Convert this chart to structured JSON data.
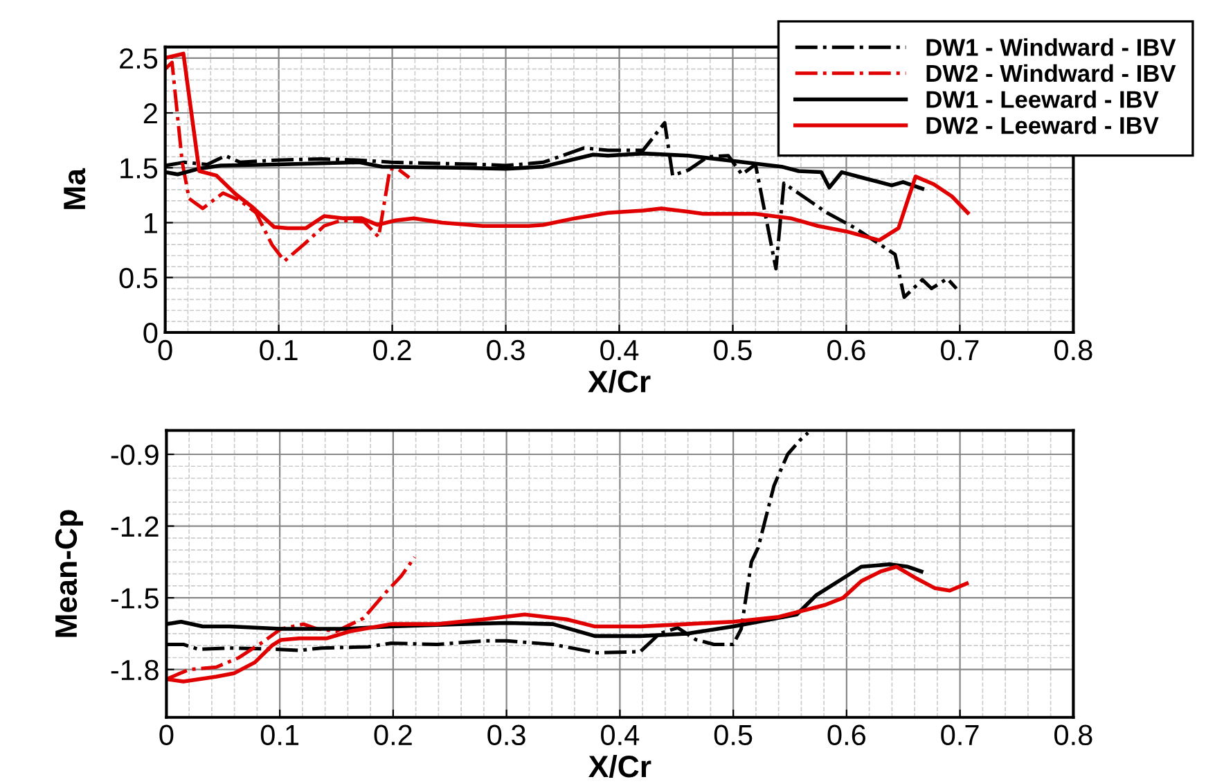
{
  "chart_data": [
    {
      "type": "line",
      "xlabel": "X/Cr",
      "ylabel": "Ma",
      "xlim": [
        0,
        0.8
      ],
      "ylim": [
        0,
        2.6
      ],
      "xticks": [
        0,
        0.1,
        0.2,
        0.3,
        0.4,
        0.5,
        0.6,
        0.7,
        0.8
      ],
      "yticks": [
        0,
        0.5,
        1,
        1.5,
        2,
        2.5
      ],
      "grid": true,
      "legend": "top right",
      "series": [
        {
          "name": "DW1 - Windward - IBV",
          "color": "#000000",
          "line_style": "dashdot",
          "x": [
            0,
            0.017,
            0.037,
            0.053,
            0.066,
            0.098,
            0.138,
            0.171,
            0.199,
            0.24,
            0.28,
            0.3,
            0.333,
            0.369,
            0.39,
            0.421,
            0.44,
            0.447,
            0.461,
            0.478,
            0.496,
            0.508,
            0.52,
            0.538,
            0.545,
            0.559,
            0.583,
            0.608,
            0.624,
            0.643,
            0.651,
            0.667,
            0.675,
            0.689,
            0.697
          ],
          "values": [
            1.52,
            1.55,
            1.53,
            1.61,
            1.55,
            1.57,
            1.58,
            1.57,
            1.55,
            1.54,
            1.53,
            1.52,
            1.55,
            1.68,
            1.66,
            1.66,
            1.91,
            1.43,
            1.48,
            1.6,
            1.61,
            1.44,
            1.53,
            0.58,
            1.36,
            1.26,
            1.09,
            0.95,
            0.84,
            0.71,
            0.32,
            0.48,
            0.4,
            0.49,
            0.4
          ]
        },
        {
          "name": "DW2 - Windward - IBV",
          "color": "#e00000",
          "line_style": "dashdot",
          "x": [
            0,
            0.006,
            0.015,
            0.021,
            0.033,
            0.051,
            0.066,
            0.08,
            0.094,
            0.105,
            0.122,
            0.14,
            0.155,
            0.175,
            0.188,
            0.198,
            0.205,
            0.215
          ],
          "values": [
            2.4,
            2.46,
            1.55,
            1.22,
            1.13,
            1.27,
            1.2,
            1.09,
            0.8,
            0.65,
            0.8,
            0.97,
            1.02,
            1.01,
            0.87,
            1.49,
            1.49,
            1.41
          ]
        },
        {
          "name": "DW1 - Leeward - IBV",
          "color": "#000000",
          "line_style": "solid",
          "x": [
            0,
            0.011,
            0.029,
            0.049,
            0.098,
            0.171,
            0.191,
            0.26,
            0.3,
            0.333,
            0.377,
            0.39,
            0.421,
            0.461,
            0.502,
            0.543,
            0.558,
            0.578,
            0.585,
            0.596,
            0.614,
            0.64,
            0.65,
            0.667
          ],
          "values": [
            1.46,
            1.44,
            1.49,
            1.52,
            1.53,
            1.55,
            1.51,
            1.5,
            1.49,
            1.51,
            1.62,
            1.61,
            1.63,
            1.61,
            1.56,
            1.51,
            1.47,
            1.46,
            1.32,
            1.46,
            1.41,
            1.34,
            1.37,
            1.31
          ]
        },
        {
          "name": "DW2 - Leeward - IBV",
          "color": "#e00000",
          "line_style": "solid",
          "x": [
            0,
            0.016,
            0.03,
            0.045,
            0.062,
            0.077,
            0.096,
            0.108,
            0.124,
            0.14,
            0.157,
            0.173,
            0.187,
            0.203,
            0.219,
            0.244,
            0.28,
            0.32,
            0.333,
            0.361,
            0.39,
            0.421,
            0.437,
            0.461,
            0.474,
            0.52,
            0.551,
            0.575,
            0.6,
            0.629,
            0.646,
            0.661,
            0.677,
            0.693,
            0.707
          ],
          "values": [
            2.5,
            2.54,
            1.47,
            1.43,
            1.26,
            1.14,
            0.96,
            0.95,
            0.95,
            1.06,
            1.04,
            1.04,
            0.98,
            1.02,
            1.04,
            1.0,
            0.97,
            0.97,
            0.98,
            1.04,
            1.09,
            1.11,
            1.13,
            1.1,
            1.08,
            1.08,
            1.04,
            0.97,
            0.92,
            0.84,
            0.95,
            1.42,
            1.35,
            1.24,
            1.09
          ]
        }
      ]
    },
    {
      "type": "line",
      "xlabel": "X/Cr",
      "ylabel": "Mean-Cp",
      "xlim": [
        0,
        0.8
      ],
      "ylim": [
        -2.0,
        -0.8
      ],
      "xticks": [
        0,
        0.1,
        0.2,
        0.3,
        0.4,
        0.5,
        0.6,
        0.7,
        0.8
      ],
      "yticks": [
        -0.9,
        -1.2,
        -1.5,
        -1.8
      ],
      "grid": true,
      "series": [
        {
          "color": "#000000",
          "line_style": "dashdot",
          "x": [
            0,
            0.015,
            0.028,
            0.056,
            0.097,
            0.117,
            0.137,
            0.178,
            0.198,
            0.239,
            0.28,
            0.3,
            0.341,
            0.38,
            0.418,
            0.435,
            0.451,
            0.467,
            0.483,
            0.5,
            0.507,
            0.516,
            0.522,
            0.536,
            0.548,
            0.559,
            0.566
          ],
          "values": [
            -1.695,
            -1.695,
            -1.715,
            -1.71,
            -1.715,
            -1.72,
            -1.71,
            -1.705,
            -1.69,
            -1.695,
            -1.68,
            -1.68,
            -1.695,
            -1.73,
            -1.725,
            -1.65,
            -1.625,
            -1.675,
            -1.695,
            -1.695,
            -1.63,
            -1.35,
            -1.29,
            -1.03,
            -0.9,
            -0.84,
            -0.81
          ]
        },
        {
          "color": "#e00000",
          "line_style": "dashdot",
          "x": [
            0,
            0.02,
            0.044,
            0.064,
            0.085,
            0.101,
            0.121,
            0.133,
            0.15,
            0.174,
            0.194,
            0.207,
            0.219
          ],
          "values": [
            -1.84,
            -1.8,
            -1.79,
            -1.75,
            -1.685,
            -1.63,
            -1.61,
            -1.63,
            -1.64,
            -1.585,
            -1.475,
            -1.41,
            -1.33
          ]
        },
        {
          "color": "#000000",
          "line_style": "solid",
          "x": [
            0,
            0.013,
            0.032,
            0.056,
            0.101,
            0.158,
            0.198,
            0.259,
            0.3,
            0.341,
            0.378,
            0.418,
            0.459,
            0.5,
            0.556,
            0.573,
            0.593,
            0.613,
            0.638,
            0.654,
            0.666
          ],
          "values": [
            -1.61,
            -1.6,
            -1.62,
            -1.62,
            -1.63,
            -1.63,
            -1.62,
            -1.61,
            -1.605,
            -1.61,
            -1.66,
            -1.66,
            -1.65,
            -1.62,
            -1.57,
            -1.49,
            -1.43,
            -1.37,
            -1.36,
            -1.37,
            -1.39
          ]
        },
        {
          "color": "#e00000",
          "line_style": "solid",
          "x": [
            0,
            0.015,
            0.044,
            0.06,
            0.078,
            0.093,
            0.101,
            0.117,
            0.141,
            0.162,
            0.198,
            0.239,
            0.28,
            0.316,
            0.353,
            0.378,
            0.418,
            0.459,
            0.5,
            0.54,
            0.581,
            0.597,
            0.613,
            0.63,
            0.644,
            0.662,
            0.678,
            0.691,
            0.706
          ],
          "values": [
            -1.84,
            -1.85,
            -1.83,
            -1.815,
            -1.77,
            -1.7,
            -1.676,
            -1.67,
            -1.67,
            -1.64,
            -1.61,
            -1.61,
            -1.59,
            -1.57,
            -1.59,
            -1.62,
            -1.62,
            -1.61,
            -1.6,
            -1.58,
            -1.53,
            -1.5,
            -1.43,
            -1.39,
            -1.37,
            -1.42,
            -1.46,
            -1.47,
            -1.44
          ]
        }
      ]
    }
  ]
}
